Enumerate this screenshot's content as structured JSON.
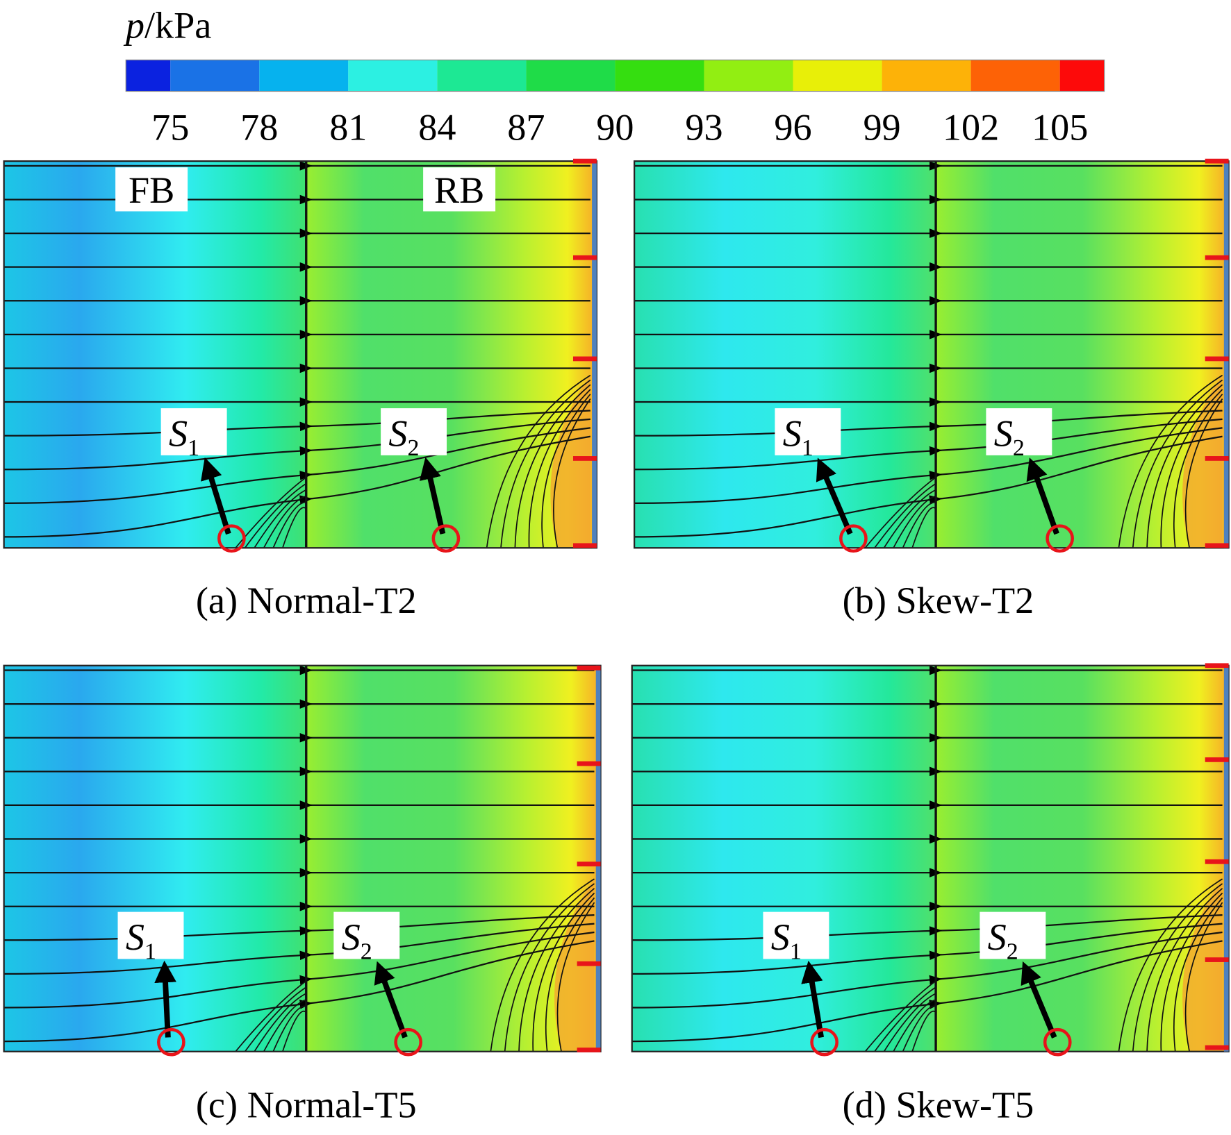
{
  "colorbar": {
    "title": {
      "symbol": "p",
      "unit": "/kPa"
    },
    "ticks": [
      75,
      78,
      81,
      84,
      87,
      90,
      93,
      96,
      99,
      102,
      105
    ],
    "colors": [
      "#0b22e0",
      "#1a72e6",
      "#06b2ee",
      "#2cf0e2",
      "#1de894",
      "#1fdc48",
      "#35de10",
      "#92ee12",
      "#e8ef08",
      "#fdb208",
      "#fd6206",
      "#fd0a0a"
    ]
  },
  "panels": [
    {
      "caption": "(a) Normal-T2",
      "regions": [
        "FB",
        "RB"
      ],
      "s1": {
        "letter": "S",
        "subscript": "1"
      },
      "s2": {
        "letter": "S",
        "subscript": "2"
      }
    },
    {
      "caption": "(b) Skew-T2",
      "s1": {
        "letter": "S",
        "subscript": "1"
      },
      "s2": {
        "letter": "S",
        "subscript": "2"
      }
    },
    {
      "caption": "(c) Normal-T5",
      "s1": {
        "letter": "S",
        "subscript": "1"
      },
      "s2": {
        "letter": "S",
        "subscript": "2"
      }
    },
    {
      "caption": "(d) Skew-T5",
      "s1": {
        "letter": "S",
        "subscript": "1"
      },
      "s2": {
        "letter": "S",
        "subscript": "2"
      }
    }
  ]
}
